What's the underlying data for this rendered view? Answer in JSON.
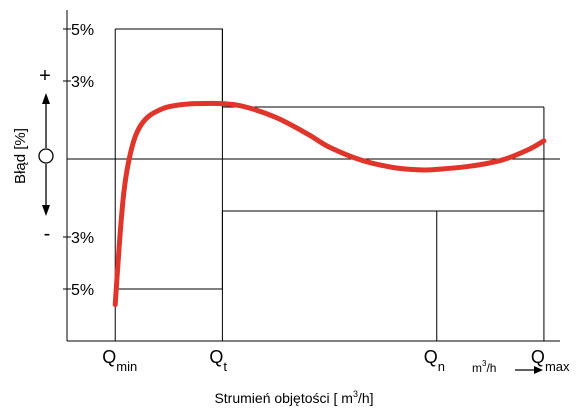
{
  "chart_data": {
    "type": "line",
    "title": "",
    "xlabel": "Strumień objętości [ m³/h]",
    "xlabel_parts": {
      "main": "Strumień objętości [ m",
      "sup": "3",
      "tail": "/h]"
    },
    "ylabel": "Błąd [%]",
    "y_signs": {
      "plus": "+",
      "minus": "-"
    },
    "y_ticks": [
      {
        "value": 5,
        "label": "5%"
      },
      {
        "value": 3,
        "label": "3%"
      },
      {
        "value": -3,
        "label": "3%"
      },
      {
        "value": -5,
        "label": "5%"
      }
    ],
    "ylim": [
      -7,
      5.5
    ],
    "x_categories": [
      {
        "key": "Qmin",
        "main": "Q",
        "sub": "min",
        "x": 1
      },
      {
        "key": "Qt",
        "main": "Q",
        "sub": "t",
        "x": 2
      },
      {
        "key": "Qn",
        "main": "Q",
        "sub": "n",
        "x": 4
      },
      {
        "key": "Qmax",
        "main": "Q",
        "sub": "max",
        "x": 5
      }
    ],
    "xlim": [
      0.55,
      5.15
    ],
    "unit_hint": {
      "main": "m",
      "sup": "3",
      "tail": "/h"
    },
    "envelope": {
      "upper": [
        [
          1,
          5
        ],
        [
          2,
          5
        ],
        [
          2,
          2
        ],
        [
          5,
          2
        ]
      ],
      "lower": [
        [
          1,
          -5
        ],
        [
          2,
          -5
        ],
        [
          2,
          -2
        ],
        [
          5,
          -2
        ]
      ]
    },
    "series": [
      {
        "color": "#e0352b",
        "points": [
          [
            1.0,
            -5.6
          ],
          [
            1.04,
            -3.2
          ],
          [
            1.08,
            -1.3
          ],
          [
            1.13,
            0.0
          ],
          [
            1.2,
            1.0
          ],
          [
            1.3,
            1.6
          ],
          [
            1.45,
            1.95
          ],
          [
            1.6,
            2.08
          ],
          [
            1.75,
            2.13
          ],
          [
            2.0,
            2.13
          ],
          [
            2.2,
            2.02
          ],
          [
            2.5,
            1.6
          ],
          [
            2.8,
            0.95
          ],
          [
            3.0,
            0.45
          ],
          [
            3.3,
            -0.05
          ],
          [
            3.6,
            -0.33
          ],
          [
            3.85,
            -0.42
          ],
          [
            4.0,
            -0.4
          ],
          [
            4.3,
            -0.28
          ],
          [
            4.6,
            -0.05
          ],
          [
            4.85,
            0.35
          ],
          [
            5.0,
            0.7
          ]
        ]
      }
    ]
  }
}
